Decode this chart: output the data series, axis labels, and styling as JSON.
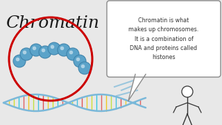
{
  "bg_color": "#e8e8e8",
  "title_text": "Chromatin",
  "title_fontsize": 18,
  "title_color": "#1a1a1a",
  "bubble_text": "Chromatin is what\nmakes up chromosomes.\nIt is a combination of\nDNA and proteins called\nhistones",
  "bubble_fontsize": 5.8,
  "bubble_border": "#888888",
  "red_circle_color": "#cc0000",
  "red_circle_lw": 2.2,
  "dna_color": "#7ab8d9",
  "dna_lw": 1.8,
  "bead_color": "#5ba3c9",
  "bead_edge": "#3a7fa8",
  "bead_r": 0.022,
  "connector_color": "#4a90b8",
  "person_color": "#333333"
}
